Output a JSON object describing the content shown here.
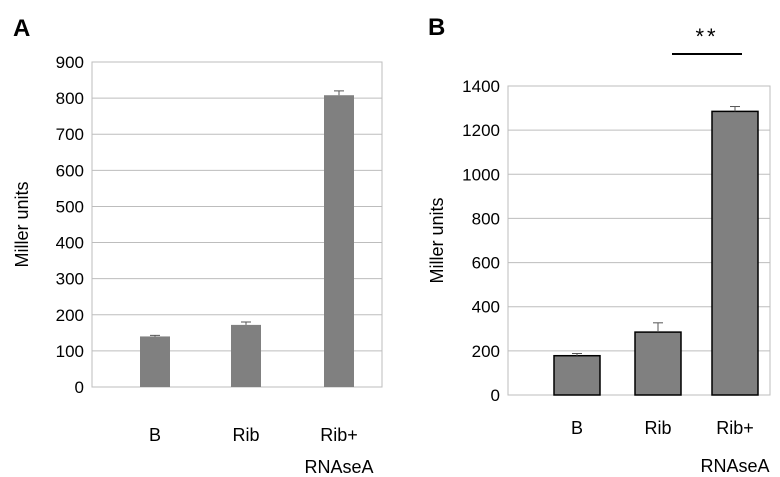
{
  "chart_data": [
    {
      "panel": "A",
      "type": "bar",
      "categories": [
        "B",
        "Rib",
        "Rib+"
      ],
      "category_sublabels": [
        "",
        "",
        "RNAseA"
      ],
      "values": [
        140,
        172,
        808
      ],
      "errors": [
        3,
        8,
        12
      ],
      "ylabel": "Miller units",
      "xlabel": "",
      "ylim": [
        0,
        900
      ],
      "yticks": [
        0,
        100,
        200,
        300,
        400,
        500,
        600,
        700,
        800,
        900
      ],
      "grid": true,
      "bar_color": "#808080",
      "bar_outline": false,
      "significance": ""
    },
    {
      "panel": "B",
      "type": "bar",
      "categories": [
        "B",
        "Rib",
        "Rib+"
      ],
      "category_sublabels": [
        "",
        "",
        "RNAseA"
      ],
      "values": [
        178,
        285,
        1285
      ],
      "errors": [
        10,
        42,
        22
      ],
      "ylabel": "Miller units",
      "xlabel": "",
      "ylim": [
        0,
        1400
      ],
      "yticks": [
        0,
        200,
        400,
        600,
        800,
        1000,
        1200,
        1400
      ],
      "grid": true,
      "bar_color": "#808080",
      "bar_outline": true,
      "significance": "**"
    }
  ]
}
